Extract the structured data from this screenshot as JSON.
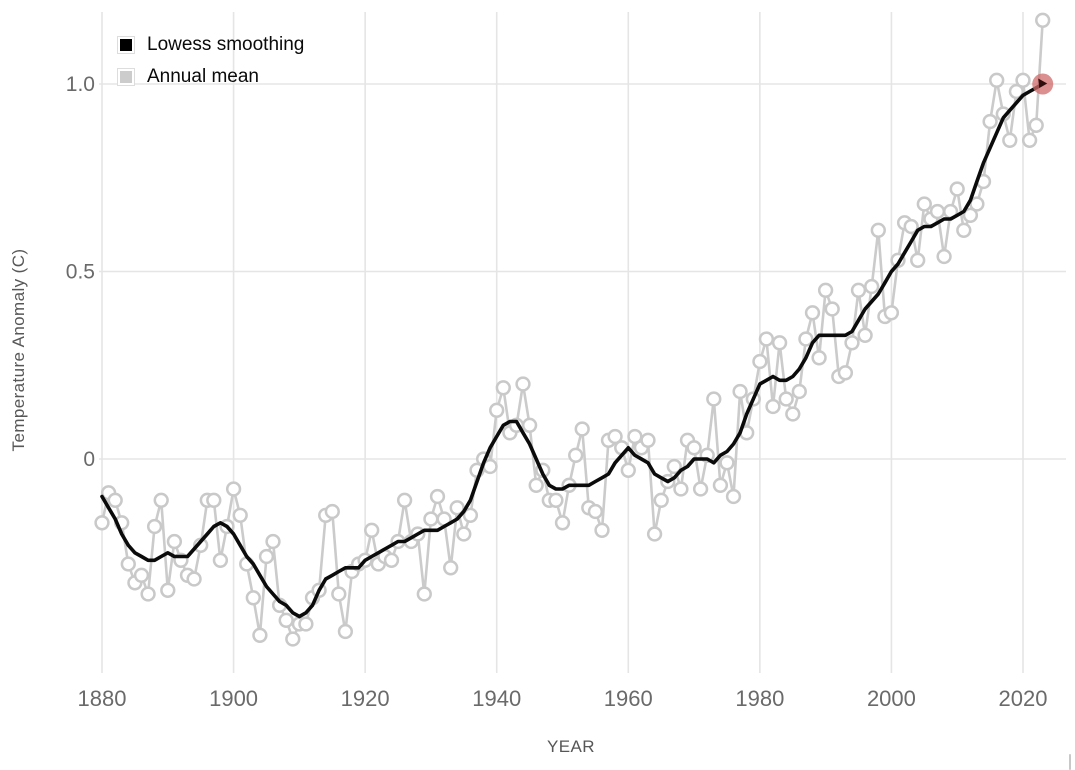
{
  "legend": {
    "items": [
      {
        "label": "Lowess smoothing",
        "swatch_color": "#000000"
      },
      {
        "label": "Annual mean",
        "swatch_color": "#cccccc"
      }
    ]
  },
  "chart_data": {
    "type": "line",
    "title": "",
    "xlabel": "YEAR",
    "ylabel": "Temperature Anomaly (C)",
    "xlim": [
      1878,
      2026
    ],
    "ylim": [
      -0.6,
      1.19
    ],
    "grid": true,
    "legend_position": "top-left",
    "x_ticks": [
      {
        "value": 1880,
        "label": "1880"
      },
      {
        "value": 1900,
        "label": "1900"
      },
      {
        "value": 1920,
        "label": "1920"
      },
      {
        "value": 1940,
        "label": "1940"
      },
      {
        "value": 1960,
        "label": "1960"
      },
      {
        "value": 1980,
        "label": "1980"
      },
      {
        "value": 2000,
        "label": "2000"
      },
      {
        "value": 2020,
        "label": "2020"
      }
    ],
    "y_ticks": [
      {
        "value": 0,
        "label": "0"
      },
      {
        "value": 0.5,
        "label": "0.5"
      },
      {
        "value": 1.0,
        "label": "1.0"
      }
    ],
    "x_start": 1880,
    "series": [
      {
        "name": "Annual mean",
        "style": "line+open-markers",
        "color": "#cbcbcb",
        "marker_fill": "#ffffff",
        "values": [
          -0.17,
          -0.09,
          -0.11,
          -0.17,
          -0.28,
          -0.33,
          -0.31,
          -0.36,
          -0.18,
          -0.11,
          -0.35,
          -0.22,
          -0.27,
          -0.31,
          -0.32,
          -0.23,
          -0.11,
          -0.11,
          -0.27,
          -0.18,
          -0.08,
          -0.15,
          -0.28,
          -0.37,
          -0.47,
          -0.26,
          -0.22,
          -0.39,
          -0.43,
          -0.48,
          -0.44,
          -0.44,
          -0.37,
          -0.35,
          -0.15,
          -0.14,
          -0.36,
          -0.46,
          -0.3,
          -0.28,
          -0.27,
          -0.19,
          -0.28,
          -0.26,
          -0.27,
          -0.22,
          -0.11,
          -0.22,
          -0.2,
          -0.36,
          -0.16,
          -0.1,
          -0.16,
          -0.29,
          -0.13,
          -0.2,
          -0.15,
          -0.03,
          0.0,
          -0.02,
          0.13,
          0.19,
          0.07,
          0.09,
          0.2,
          0.09,
          -0.07,
          -0.03,
          -0.11,
          -0.11,
          -0.17,
          -0.07,
          0.01,
          0.08,
          -0.13,
          -0.14,
          -0.19,
          0.05,
          0.06,
          0.03,
          -0.03,
          0.06,
          0.03,
          0.05,
          -0.2,
          -0.11,
          -0.06,
          -0.02,
          -0.08,
          0.05,
          0.03,
          -0.08,
          0.01,
          0.16,
          -0.07,
          -0.01,
          -0.1,
          0.18,
          0.07,
          0.16,
          0.26,
          0.32,
          0.14,
          0.31,
          0.16,
          0.12,
          0.18,
          0.32,
          0.39,
          0.27,
          0.45,
          0.4,
          0.22,
          0.23,
          0.31,
          0.45,
          0.33,
          0.46,
          0.61,
          0.38,
          0.39,
          0.53,
          0.63,
          0.62,
          0.53,
          0.68,
          0.64,
          0.66,
          0.54,
          0.66,
          0.72,
          0.61,
          0.65,
          0.68,
          0.74,
          0.9,
          1.01,
          0.92,
          0.85,
          0.98,
          1.01,
          0.85,
          0.89,
          1.17
        ]
      },
      {
        "name": "Lowess smoothing",
        "style": "line",
        "color": "#0b0b0b",
        "values": [
          -0.1,
          -0.13,
          -0.16,
          -0.2,
          -0.23,
          -0.25,
          -0.26,
          -0.27,
          -0.27,
          -0.26,
          -0.25,
          -0.26,
          -0.26,
          -0.26,
          -0.24,
          -0.22,
          -0.2,
          -0.18,
          -0.17,
          -0.18,
          -0.2,
          -0.23,
          -0.26,
          -0.28,
          -0.31,
          -0.34,
          -0.36,
          -0.38,
          -0.39,
          -0.41,
          -0.42,
          -0.41,
          -0.39,
          -0.35,
          -0.32,
          -0.31,
          -0.3,
          -0.29,
          -0.29,
          -0.29,
          -0.27,
          -0.26,
          -0.25,
          -0.24,
          -0.23,
          -0.22,
          -0.22,
          -0.21,
          -0.2,
          -0.19,
          -0.19,
          -0.19,
          -0.18,
          -0.17,
          -0.16,
          -0.14,
          -0.11,
          -0.06,
          -0.01,
          0.03,
          0.06,
          0.09,
          0.1,
          0.1,
          0.07,
          0.04,
          0.0,
          -0.04,
          -0.07,
          -0.08,
          -0.08,
          -0.07,
          -0.07,
          -0.07,
          -0.07,
          -0.06,
          -0.05,
          -0.04,
          -0.01,
          0.01,
          0.03,
          0.01,
          0.0,
          -0.01,
          -0.04,
          -0.05,
          -0.06,
          -0.05,
          -0.03,
          -0.02,
          0.0,
          0.0,
          0.0,
          -0.01,
          0.01,
          0.02,
          0.04,
          0.07,
          0.12,
          0.16,
          0.2,
          0.21,
          0.22,
          0.21,
          0.21,
          0.22,
          0.24,
          0.27,
          0.31,
          0.33,
          0.33,
          0.33,
          0.33,
          0.33,
          0.34,
          0.37,
          0.4,
          0.42,
          0.44,
          0.47,
          0.5,
          0.52,
          0.55,
          0.58,
          0.61,
          0.62,
          0.62,
          0.63,
          0.64,
          0.64,
          0.65,
          0.66,
          0.69,
          0.74,
          0.79,
          0.83,
          0.87,
          0.91,
          0.93,
          0.95,
          0.97,
          0.98,
          0.99,
          1.0
        ]
      }
    ],
    "highlight": {
      "x": 2023,
      "y": 1.0,
      "color": "#cf6a6a",
      "opacity": 0.75,
      "arrow_color": "#2e0d0d"
    }
  },
  "colors": {
    "gridline": "#e5e5e5",
    "tick_label": "#6a6a6a",
    "axis_title": "#575757"
  }
}
